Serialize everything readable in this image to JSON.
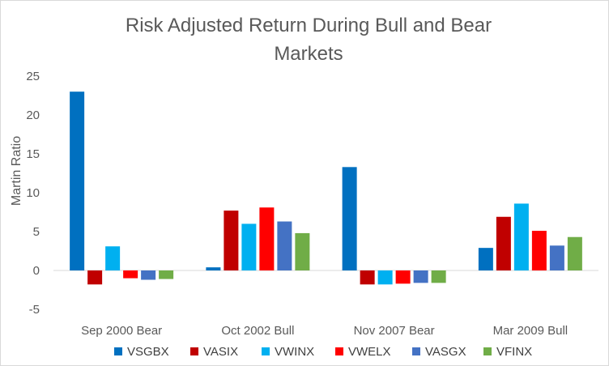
{
  "chart_data": {
    "type": "bar",
    "title_lines": [
      "Risk Adjusted Return During Bull and Bear",
      "Markets"
    ],
    "xlabel": "",
    "ylabel": "Martin Ratio",
    "ylim": [
      -5,
      25
    ],
    "yticks": [
      25,
      20,
      15,
      10,
      5,
      0,
      -5
    ],
    "grid": false,
    "legend_position": "bottom",
    "categories": [
      "Sep 2000 Bear",
      "Oct 2002 Bull",
      "Nov 2007 Bear",
      "Mar 2009 Bull"
    ],
    "series": [
      {
        "name": "VSGBX",
        "color": "#0070c0",
        "values": [
          23.0,
          0.4,
          13.3,
          2.9
        ]
      },
      {
        "name": "VASIX",
        "color": "#c00000",
        "values": [
          -1.8,
          7.7,
          -1.8,
          6.9
        ]
      },
      {
        "name": "VWINX",
        "color": "#00b0f0",
        "values": [
          3.1,
          6.0,
          -1.8,
          8.6
        ]
      },
      {
        "name": "VWELX",
        "color": "#ff0000",
        "values": [
          -1.0,
          8.1,
          -1.7,
          5.1
        ]
      },
      {
        "name": "VASGX",
        "color": "#4472c4",
        "values": [
          -1.2,
          6.3,
          -1.6,
          3.2
        ]
      },
      {
        "name": "VFINX",
        "color": "#70ad47",
        "values": [
          -1.1,
          4.8,
          -1.6,
          4.3
        ]
      }
    ]
  }
}
